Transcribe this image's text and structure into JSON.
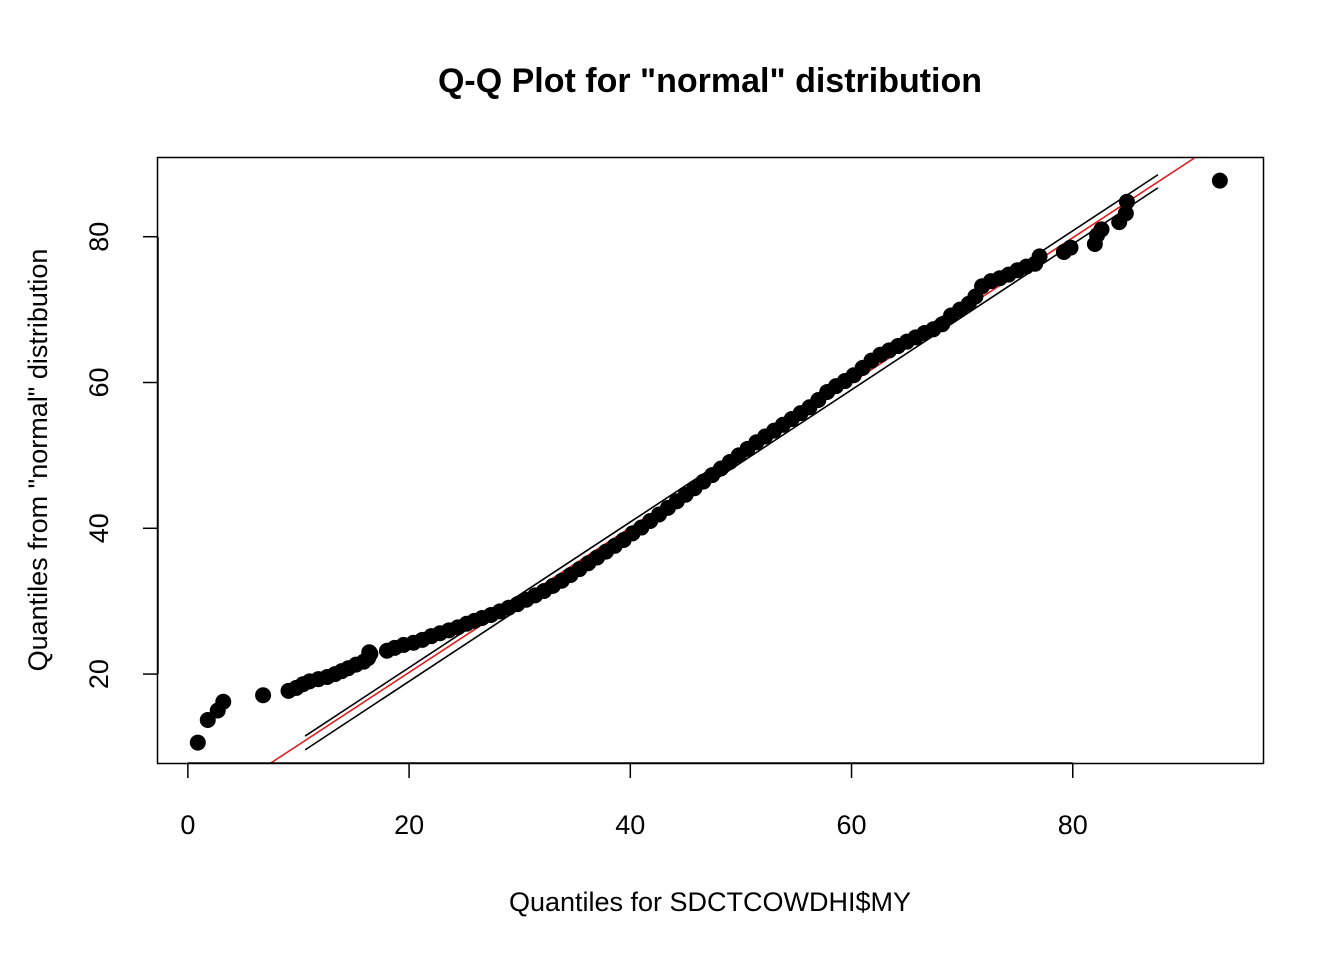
{
  "chart_data": {
    "type": "scatter",
    "title": "Q-Q Plot for \"normal\" distribution",
    "xlabel": "Quantiles for SDCTCOWDHI$MY",
    "ylabel": "Quantiles from \"normal\" distribution",
    "xlim": [
      -2.7,
      97.2
    ],
    "ylim": [
      7.8,
      90.8
    ],
    "x_ticks": [
      0,
      20,
      40,
      60,
      80
    ],
    "y_ticks": [
      20,
      40,
      60,
      80
    ],
    "grid": false,
    "points": [
      [
        0.9,
        10.6
      ],
      [
        1.8,
        13.7
      ],
      [
        2.7,
        15.0
      ],
      [
        3.2,
        16.2
      ],
      [
        6.8,
        17.1
      ],
      [
        9.1,
        17.7
      ],
      [
        9.8,
        18.1
      ],
      [
        10.4,
        18.6
      ],
      [
        11.0,
        19.0
      ],
      [
        11.8,
        19.3
      ],
      [
        12.6,
        19.6
      ],
      [
        13.3,
        20.0
      ],
      [
        13.9,
        20.4
      ],
      [
        14.5,
        20.8
      ],
      [
        15.2,
        21.3
      ],
      [
        15.9,
        21.7
      ],
      [
        16.3,
        22.2
      ],
      [
        16.5,
        22.8
      ],
      [
        16.4,
        23.0
      ],
      [
        18.0,
        23.2
      ],
      [
        18.7,
        23.6
      ],
      [
        19.5,
        24.0
      ],
      [
        20.4,
        24.3
      ],
      [
        21.2,
        24.7
      ],
      [
        22.0,
        25.2
      ],
      [
        22.8,
        25.6
      ],
      [
        23.6,
        26.0
      ],
      [
        24.4,
        26.4
      ],
      [
        25.2,
        26.9
      ],
      [
        25.9,
        27.3
      ],
      [
        26.6,
        27.7
      ],
      [
        27.4,
        28.1
      ],
      [
        28.2,
        28.6
      ],
      [
        29.0,
        29.1
      ],
      [
        29.8,
        29.6
      ],
      [
        30.6,
        30.2
      ],
      [
        31.4,
        30.8
      ],
      [
        32.2,
        31.4
      ],
      [
        33.0,
        32.1
      ],
      [
        33.8,
        32.8
      ],
      [
        34.6,
        33.6
      ],
      [
        35.4,
        34.4
      ],
      [
        36.2,
        35.2
      ],
      [
        37.0,
        36.0
      ],
      [
        37.8,
        36.8
      ],
      [
        38.6,
        37.6
      ],
      [
        39.4,
        38.4
      ],
      [
        40.2,
        39.3
      ],
      [
        41.0,
        40.1
      ],
      [
        41.8,
        41.0
      ],
      [
        42.6,
        41.9
      ],
      [
        43.4,
        42.8
      ],
      [
        44.2,
        43.7
      ],
      [
        45.0,
        44.6
      ],
      [
        45.8,
        45.5
      ],
      [
        46.6,
        46.4
      ],
      [
        47.4,
        47.3
      ],
      [
        48.2,
        48.2
      ],
      [
        49.0,
        49.1
      ],
      [
        49.8,
        50.0
      ],
      [
        50.6,
        50.9
      ],
      [
        51.4,
        51.8
      ],
      [
        52.2,
        52.6
      ],
      [
        53.0,
        53.4
      ],
      [
        53.8,
        54.2
      ],
      [
        54.6,
        55.0
      ],
      [
        55.4,
        55.8
      ],
      [
        56.2,
        56.6
      ],
      [
        57.0,
        57.6
      ],
      [
        57.8,
        58.7
      ],
      [
        58.6,
        59.5
      ],
      [
        59.4,
        60.2
      ],
      [
        60.2,
        61.0
      ],
      [
        61.0,
        62.0
      ],
      [
        61.8,
        63.0
      ],
      [
        62.6,
        63.8
      ],
      [
        63.4,
        64.4
      ],
      [
        64.2,
        65.0
      ],
      [
        65.0,
        65.6
      ],
      [
        65.8,
        66.2
      ],
      [
        66.6,
        66.8
      ],
      [
        67.4,
        67.3
      ],
      [
        68.2,
        68.0
      ],
      [
        69.0,
        69.2
      ],
      [
        69.8,
        70.0
      ],
      [
        70.6,
        70.8
      ],
      [
        71.2,
        71.8
      ],
      [
        71.8,
        73.2
      ],
      [
        72.6,
        73.9
      ],
      [
        73.4,
        74.3
      ],
      [
        74.2,
        74.8
      ],
      [
        75.0,
        75.4
      ],
      [
        75.8,
        75.9
      ],
      [
        76.6,
        76.3
      ],
      [
        77.0,
        77.3
      ],
      [
        79.2,
        77.9
      ],
      [
        79.8,
        78.5
      ],
      [
        82.0,
        79.0
      ],
      [
        82.2,
        80.2
      ],
      [
        82.6,
        81.0
      ],
      [
        84.2,
        82.0
      ],
      [
        84.8,
        83.2
      ],
      [
        84.9,
        84.8
      ],
      [
        93.3,
        87.7
      ]
    ],
    "lines": [
      {
        "name": "",
        "color": "#e31a1c",
        "x": [
          7.5,
          91.0
        ],
        "y": [
          7.8,
          90.8
        ]
      },
      {
        "name": "",
        "color": "#000000",
        "x": [
          10.6,
          87.7
        ],
        "y": [
          11.5,
          88.5
        ]
      },
      {
        "name": "",
        "color": "#000000",
        "x": [
          10.6,
          87.7
        ],
        "y": [
          9.6,
          86.7
        ]
      }
    ]
  }
}
